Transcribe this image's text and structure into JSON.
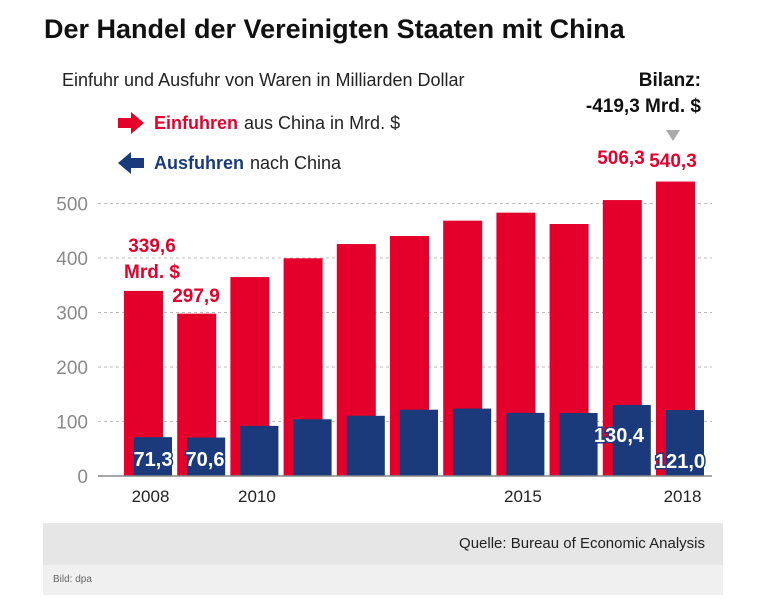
{
  "title": "Der Handel der Vereinigten Staaten mit China",
  "subtitle": "Einfuhr und Ausfuhr von Waren in Milliarden Dollar",
  "bilanz": {
    "label": "Bilanz:",
    "value": "-419,3 Mrd. $"
  },
  "legend": {
    "imports": {
      "strong": "Einfuhren",
      "rest": "aus China in Mrd. $"
    },
    "exports": {
      "strong": "Ausfuhren",
      "rest": "nach China"
    }
  },
  "colors": {
    "imports": "#e4002b",
    "exports": "#1a3a7c",
    "grid": "#bbbbbb",
    "axis": "#888888"
  },
  "chart_data": {
    "type": "bar",
    "title": "Der Handel der Vereinigten Staaten mit China",
    "ylabel": "Milliarden Dollar",
    "ylim": [
      0,
      580
    ],
    "yticks": [
      0,
      100,
      200,
      300,
      400,
      500
    ],
    "categories": [
      "2008",
      "2009",
      "2010",
      "2011",
      "2012",
      "2013",
      "2014",
      "2015",
      "2016",
      "2017",
      "2018"
    ],
    "xtick_labels": [
      "2008",
      "",
      "2010",
      "",
      "",
      "",
      "",
      "2015",
      "",
      "",
      "2018"
    ],
    "series": [
      {
        "name": "Einfuhren",
        "values": [
          339.6,
          297.9,
          365.0,
          399.4,
          425.6,
          440.4,
          468.5,
          483.2,
          462.4,
          506.3,
          540.3
        ]
      },
      {
        "name": "Ausfuhren",
        "values": [
          71.3,
          70.6,
          91.9,
          104.1,
          110.5,
          121.7,
          123.7,
          115.9,
          115.6,
          130.4,
          121.0
        ]
      }
    ],
    "annotations": {
      "imports": [
        {
          "index": 0,
          "lines": [
            "339,6",
            "Mrd. $"
          ]
        },
        {
          "index": 1,
          "lines": [
            "297,9"
          ]
        },
        {
          "index": 9,
          "lines": [
            "506,3"
          ]
        },
        {
          "index": 10,
          "lines": [
            "540,3"
          ]
        }
      ],
      "exports": [
        {
          "index": 0,
          "text": "71,3"
        },
        {
          "index": 1,
          "text": "70,6"
        },
        {
          "index": 9,
          "text": "130,4"
        },
        {
          "index": 10,
          "text": "121,0"
        }
      ]
    }
  },
  "source": "Quelle: Bureau of Economic Analysis",
  "credit": "Bild: dpa"
}
